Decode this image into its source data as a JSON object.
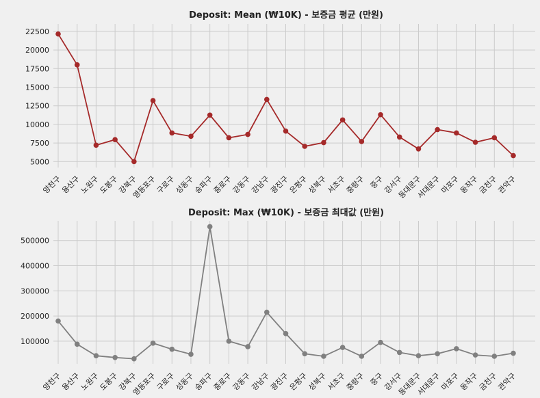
{
  "chart_data": [
    {
      "type": "line",
      "title": "Deposit: Mean (₩10K) - 보증금 평균 (만원)",
      "categories": [
        "양천구",
        "용산구",
        "노원구",
        "도봉구",
        "강북구",
        "영등포구",
        "구로구",
        "성동구",
        "송파구",
        "종로구",
        "강동구",
        "강남구",
        "광진구",
        "은평구",
        "성북구",
        "서초구",
        "중랑구",
        "중구",
        "강서구",
        "동대문구",
        "서대문구",
        "마포구",
        "동작구",
        "금천구",
        "관악구"
      ],
      "series": [
        {
          "values": [
            22150,
            18000,
            7200,
            7950,
            5000,
            13200,
            8850,
            8400,
            11250,
            8200,
            8650,
            13350,
            9100,
            7050,
            7550,
            10600,
            7700,
            11300,
            8300,
            6700,
            9300,
            8850,
            7600,
            8200,
            5800
          ],
          "color": "#a52a2a"
        }
      ],
      "yticks": [
        5000,
        7500,
        10000,
        12500,
        15000,
        17500,
        20000,
        22500
      ],
      "ylim": [
        4200,
        23500
      ],
      "grid": true
    },
    {
      "type": "line",
      "title": "Deposit: Max (₩10K) - 보증금 최대값 (만원)",
      "categories": [
        "양천구",
        "용산구",
        "노원구",
        "도봉구",
        "강북구",
        "영등포구",
        "구로구",
        "성동구",
        "송파구",
        "종로구",
        "강동구",
        "강남구",
        "광진구",
        "은평구",
        "성북구",
        "서초구",
        "중랑구",
        "중구",
        "강서구",
        "동대문구",
        "서대문구",
        "마포구",
        "동작구",
        "금천구",
        "관악구"
      ],
      "series": [
        {
          "values": [
            180000,
            88000,
            42000,
            35000,
            30000,
            92000,
            68000,
            48000,
            555000,
            100000,
            78000,
            215000,
            130000,
            50000,
            40000,
            75000,
            40000,
            95000,
            55000,
            42000,
            50000,
            70000,
            45000,
            40000,
            52000
          ],
          "color": "#808080"
        }
      ],
      "yticks": [
        100000,
        200000,
        300000,
        400000,
        500000
      ],
      "ylim": [
        10000,
        578000
      ],
      "grid": true
    }
  ]
}
